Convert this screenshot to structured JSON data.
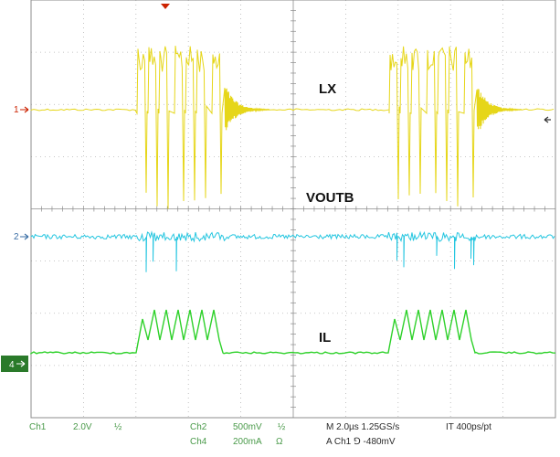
{
  "colors": {
    "ch1": "#e6d619",
    "ch2": "#25c6e0",
    "ch4": "#2ed12a",
    "grid": "#b4b4b4",
    "frame": "#8c8c8c",
    "marker_red": "#cc2200",
    "status_text": "#4a9a4a",
    "status_text_dark": "#2a2a2a"
  },
  "trace_labels": {
    "lx": "LX",
    "voutb": "VOUTB",
    "il": "IL"
  },
  "channel_markers": {
    "ch1": "1",
    "ch2": "2",
    "ch4": "4"
  },
  "status": {
    "ch1_name": "Ch1",
    "ch1_scale": "2.0V",
    "ch1_coupling": "½",
    "ch2_name": "Ch2",
    "ch2_scale": "500mV",
    "ch2_coupling": "½",
    "ch4_name": "Ch4",
    "ch4_scale": "200mA",
    "ch4_unit": "Ω",
    "timebase": "M 2.0µs  1.25GS/s",
    "record": "IT 400ps/pt",
    "trigger": "A  Ch1  ⅁  -480mV"
  }
}
